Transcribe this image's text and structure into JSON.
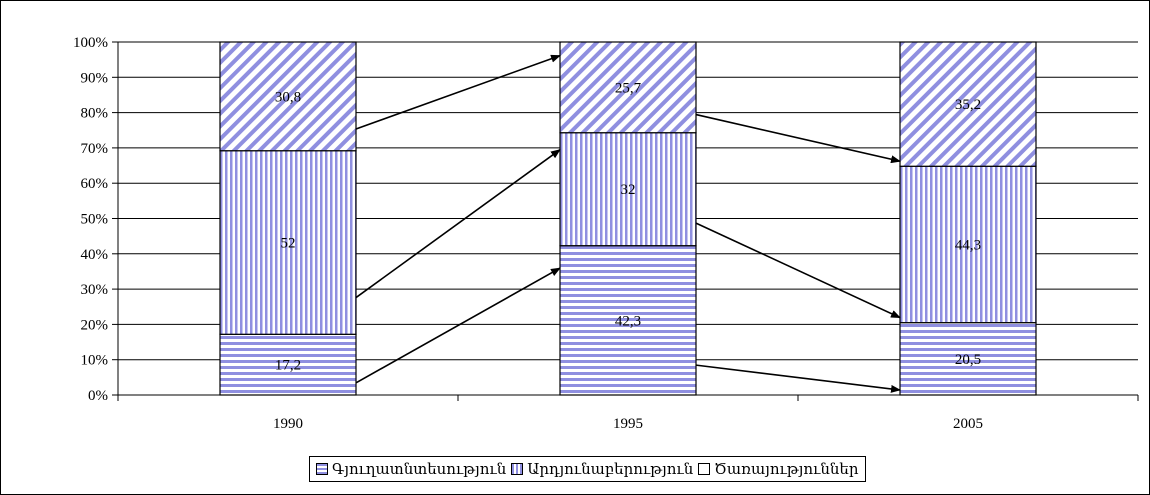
{
  "chart_data": {
    "type": "bar",
    "stacked": true,
    "percent": true,
    "categories": [
      "1990",
      "1995",
      "2005"
    ],
    "series": [
      {
        "name": "Գյուղատնտեսություն",
        "values": [
          17.2,
          42.3,
          20.5
        ],
        "labels": [
          "17,2",
          "42,3",
          "20,5"
        ],
        "pattern": "horizontal-stripes"
      },
      {
        "name": "Արդյունաբերություն",
        "values": [
          52,
          32,
          44.3
        ],
        "labels": [
          "52",
          "32",
          "44,3"
        ],
        "pattern": "vertical-stripes"
      },
      {
        "name": "Ծառայություններ",
        "values": [
          30.8,
          25.7,
          35.2
        ],
        "labels": [
          "30,8",
          "25,7",
          "35,2"
        ],
        "pattern": "diagonal-stripes"
      }
    ],
    "y_ticks": [
      "0%",
      "10%",
      "20%",
      "30%",
      "40%",
      "50%",
      "60%",
      "70%",
      "80%",
      "90%",
      "100%"
    ],
    "ylim": [
      0,
      100
    ],
    "grid": true,
    "legend_position": "bottom",
    "arrows": "connect each segment to the same segment in the next column",
    "colors": {
      "stripe": "#8f8fe0",
      "background": "#ffffff",
      "axis": "#000000"
    }
  }
}
